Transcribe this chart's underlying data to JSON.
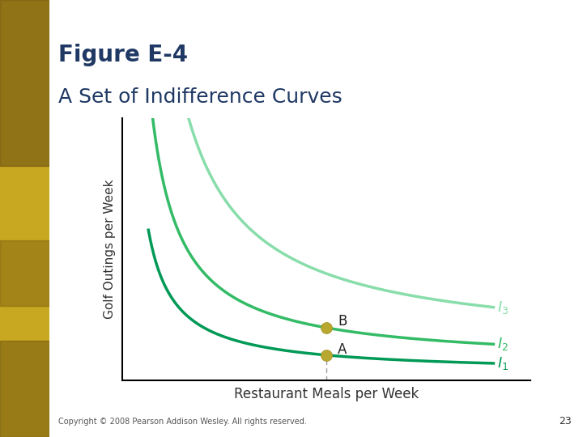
{
  "title_line1": "Figure E-4",
  "title_line2": "A Set of Indifference Curves",
  "title_color": "#1f3864",
  "xlabel": "Restaurant Meals per Week",
  "ylabel": "Golf Outings per Week",
  "background_color": "#ffffff",
  "curve_colors": {
    "I1": "#009955",
    "I2": "#33bb66",
    "I3": "#88ddaa"
  },
  "point_A": [
    5.5,
    1.1
  ],
  "point_B": [
    5.5,
    2.3
  ],
  "point_color": "#b8a830",
  "dashed_line_color": "#999999",
  "copyright_text": "Copyright © 2008 Pearson Addison Wesley. All rights reserved.",
  "page_number": "23",
  "axis_color": "#000000",
  "title_fontsize1": 20,
  "title_fontsize2": 18,
  "left_bar_colors": [
    "#c8a820",
    "#a08010",
    "#8a6e10"
  ]
}
